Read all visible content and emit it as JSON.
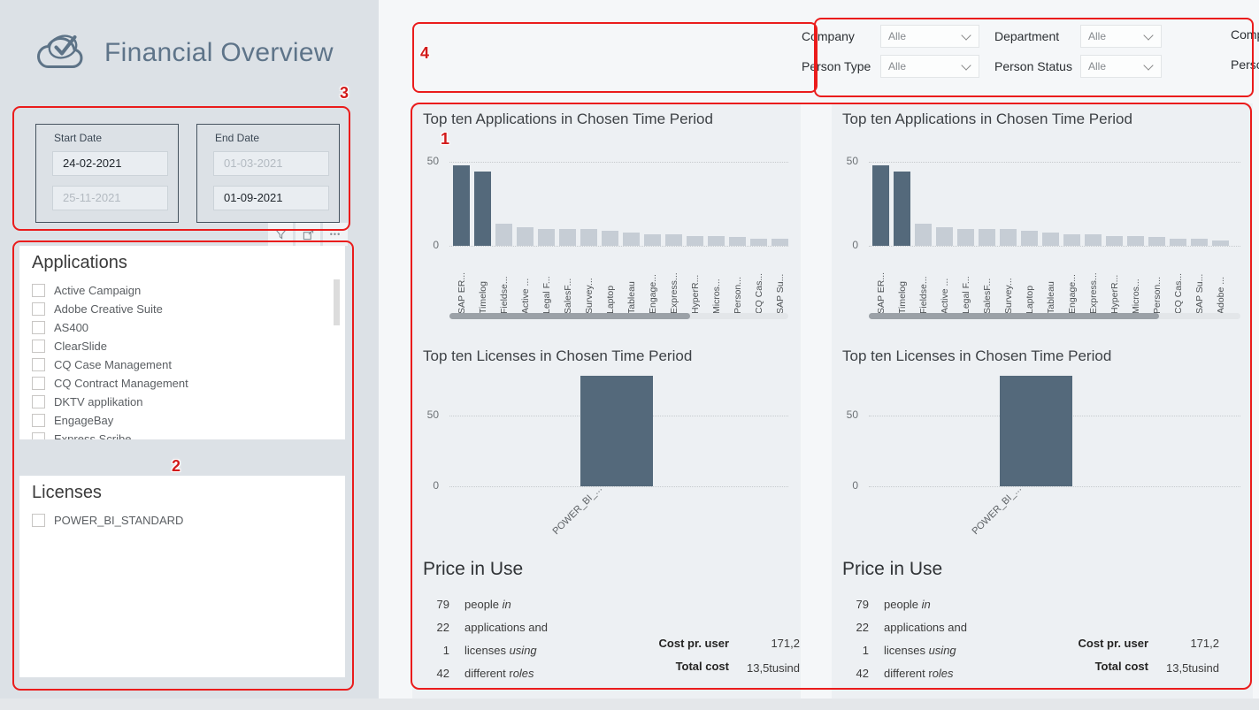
{
  "annotations": {
    "n1": "1",
    "n2": "2",
    "n3": "3",
    "n4": "4"
  },
  "colors": {
    "annotation_red": "#ea1c1c",
    "bar_dark": "#54697b",
    "bar_light": "#c6cdd5",
    "title_slate": "#5e7489"
  },
  "sidebar": {
    "app_title": "Financial Overview",
    "date_slicers": [
      {
        "label": "Start Date",
        "inputs": [
          {
            "value": "24-02-2021",
            "muted": false
          },
          {
            "value": "25-11-2021",
            "muted": true
          }
        ]
      },
      {
        "label": "End Date",
        "inputs": [
          {
            "value": "01-03-2021",
            "muted": true
          },
          {
            "value": "01-09-2021",
            "muted": false
          }
        ]
      }
    ],
    "applications": {
      "title": "Applications",
      "items": [
        "Active Campaign",
        "Adobe Creative Suite",
        "AS400",
        "ClearSlide",
        "CQ Case Management",
        "CQ Contract Management",
        "DKTV applikation",
        "EngageBay",
        "Express Scribe"
      ]
    },
    "licenses": {
      "title": "Licenses",
      "items": [
        "POWER_BI_STANDARD"
      ]
    }
  },
  "filters": {
    "rows": [
      [
        "Company",
        "Department"
      ],
      [
        "Person Type",
        "Person Status"
      ]
    ],
    "value": "Alle"
  },
  "chart_data": [
    {
      "type": "bar",
      "title": "Top ten Applications in Chosen Time Period",
      "categories": [
        "SAP ER...",
        "Timelog",
        "Fieldse...",
        "Active ...",
        "Legal F...",
        "SalesF...",
        "Survey...",
        "Laptop",
        "Tableau",
        "Engage...",
        "Express...",
        "HyperR...",
        "Micros...",
        "Person...",
        "CQ Cas...",
        "SAP Su..."
      ],
      "values": [
        48,
        44,
        13,
        11,
        10,
        10,
        10,
        9,
        8,
        7,
        7,
        6,
        6,
        5,
        4,
        4
      ],
      "highlight_first": 2,
      "ylim": [
        0,
        50
      ],
      "yticks": [
        0,
        50
      ],
      "grid": "dotted",
      "scroll_thumb_pct": 71
    },
    {
      "type": "bar",
      "title": "Top ten Applications in Chosen Time Period",
      "categories": [
        "SAP ER...",
        "Timelog",
        "Fieldse...",
        "Active ...",
        "Legal F...",
        "SalesF...",
        "Survey...",
        "Laptop",
        "Tableau",
        "Engage...",
        "Express...",
        "HyperR...",
        "Micros...",
        "Person...",
        "CQ Cas...",
        "SAP Su...",
        "Adobe ..."
      ],
      "values": [
        48,
        44,
        13,
        11,
        10,
        10,
        10,
        9,
        8,
        7,
        7,
        6,
        6,
        5,
        4,
        4,
        3
      ],
      "highlight_first": 2,
      "ylim": [
        0,
        50
      ],
      "yticks": [
        0,
        50
      ],
      "grid": "dotted",
      "scroll_thumb_pct": 78
    },
    {
      "type": "bar",
      "title": "Top ten Licenses in Chosen Time Period",
      "categories": [
        "POWER_BI_..."
      ],
      "values": [
        78
      ],
      "highlight_first": 1,
      "ylim": [
        0,
        80
      ],
      "yticks": [
        0,
        50
      ],
      "grid": "dotted"
    },
    {
      "type": "bar",
      "title": "Top ten Licenses in Chosen Time Period",
      "categories": [
        "POWER_BI_..."
      ],
      "values": [
        78
      ],
      "highlight_first": 1,
      "ylim": [
        0,
        80
      ],
      "yticks": [
        0,
        50
      ],
      "grid": "dotted"
    }
  ],
  "price": {
    "title": "Price in Use",
    "rows": [
      {
        "num": "79",
        "text": "people ",
        "italic": "in"
      },
      {
        "num": "22",
        "text": "applications and",
        "italic": ""
      },
      {
        "num": "1",
        "text": "licenses ",
        "italic": "using"
      },
      {
        "num": "42",
        "text": "different r",
        "italic": "oles"
      }
    ],
    "cost_user_label": "Cost pr. user",
    "cost_user_value": "171,2",
    "total_label": "Total cost",
    "total_value": "13,5tusind"
  }
}
